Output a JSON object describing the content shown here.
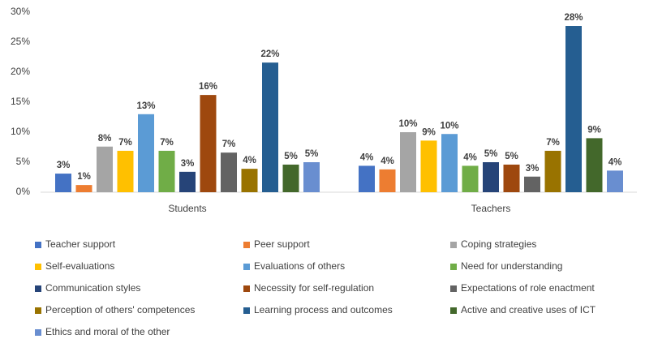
{
  "chart_data": {
    "type": "bar",
    "categories": [
      "Students",
      "Teachers"
    ],
    "series": [
      {
        "name": "Teacher support",
        "color": "#4472c4",
        "values": [
          3.1,
          4.4
        ],
        "value_labels": [
          "3%",
          "4%"
        ]
      },
      {
        "name": "Peer support",
        "color": "#ed7d31",
        "values": [
          1.2,
          3.8
        ],
        "value_labels": [
          "1%",
          "4%"
        ]
      },
      {
        "name": "Coping strategies",
        "color": "#a5a5a5",
        "values": [
          7.6,
          10.0
        ],
        "value_labels": [
          "8%",
          "10%"
        ]
      },
      {
        "name": "Self-evaluations",
        "color": "#ffc000",
        "values": [
          6.9,
          8.6
        ],
        "value_labels": [
          "7%",
          "9%"
        ]
      },
      {
        "name": "Evaluations of others",
        "color": "#5b9bd5",
        "values": [
          13.0,
          9.7
        ],
        "value_labels": [
          "13%",
          "10%"
        ]
      },
      {
        "name": "Need for understanding",
        "color": "#70ad47",
        "values": [
          6.9,
          4.4
        ],
        "value_labels": [
          "7%",
          "4%"
        ]
      },
      {
        "name": "Communication styles",
        "color": "#264478",
        "values": [
          3.4,
          5.0
        ],
        "value_labels": [
          "3%",
          "5%"
        ]
      },
      {
        "name": "Necessity for self-regulation",
        "color": "#9e480e",
        "values": [
          16.2,
          4.6
        ],
        "value_labels": [
          "16%",
          "5%"
        ]
      },
      {
        "name": "Expectations of role enactment",
        "color": "#636363",
        "values": [
          6.6,
          2.6
        ],
        "value_labels": [
          "7%",
          "3%"
        ]
      },
      {
        "name": "Perception of others' competences",
        "color": "#997300",
        "values": [
          3.9,
          6.9
        ],
        "value_labels": [
          "4%",
          "7%"
        ]
      },
      {
        "name": "Learning process and outcomes",
        "color": "#255e91",
        "values": [
          21.6,
          27.7
        ],
        "value_labels": [
          "22%",
          "28%"
        ]
      },
      {
        "name": "Active and creative uses of ICT",
        "color": "#43682b",
        "values": [
          4.6,
          9.0
        ],
        "value_labels": [
          "5%",
          "9%"
        ]
      },
      {
        "name": "Ethics and moral of the other",
        "color": "#698ed0",
        "values": [
          5.0,
          3.6
        ],
        "value_labels": [
          "5%",
          "4%"
        ]
      }
    ],
    "ylim": [
      0,
      30
    ],
    "yticks": [
      {
        "value": 0,
        "label": "0%"
      },
      {
        "value": 5,
        "label": "5%"
      },
      {
        "value": 10,
        "label": "10%"
      },
      {
        "value": 15,
        "label": "15%"
      },
      {
        "value": 20,
        "label": "20%"
      },
      {
        "value": 25,
        "label": "25%"
      },
      {
        "value": 30,
        "label": "30%"
      }
    ],
    "grid": false,
    "legend": "bottom"
  }
}
